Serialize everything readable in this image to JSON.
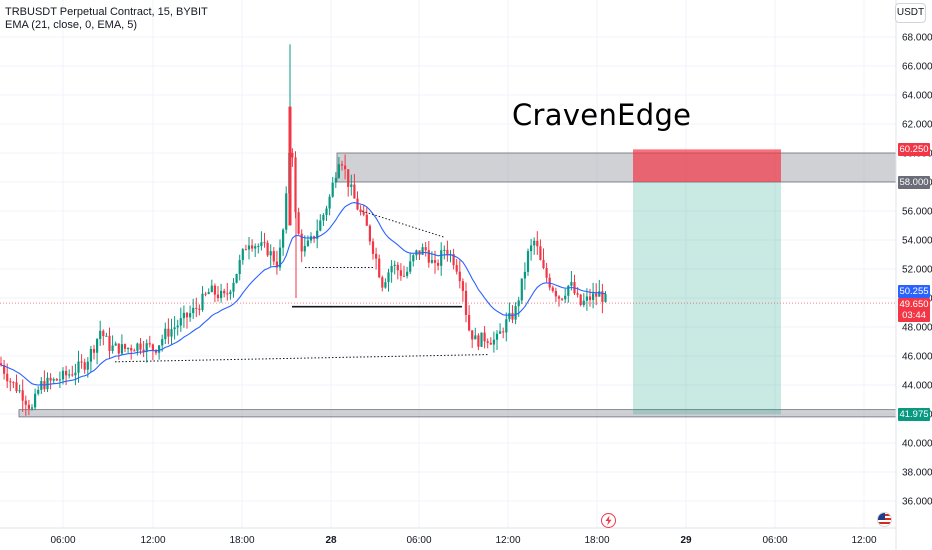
{
  "header": {
    "symbol_line": "TRBUSDT Perpetual Contract, 15, BYBIT",
    "indicator_line": "EMA (21, close, 0, EMA, 5)"
  },
  "unit_button": "USDT",
  "watermark": "CravenEdge",
  "y_axis": {
    "ticks": [
      "36.000",
      "38.000",
      "40.000",
      "42.000",
      "44.000",
      "46.000",
      "48.000",
      "50.000",
      "52.000",
      "54.000",
      "56.000",
      "58.000",
      "60.000",
      "62.000",
      "64.000",
      "66.000",
      "68.000"
    ],
    "min": 35,
    "max": 69
  },
  "x_axis": {
    "ticks": [
      "06:00",
      "12:00",
      "18:00",
      "28",
      "06:00",
      "12:00",
      "18:00",
      "29",
      "06:00",
      "12:00"
    ]
  },
  "price_tags": {
    "stop": "60.250",
    "entry": "58.000",
    "ema": "50.255",
    "last": "49.650",
    "countdown": "03:44",
    "target": "41.975"
  },
  "colors": {
    "up": "#089981",
    "down": "#f23645",
    "ema": "#2962ff",
    "stop_zone": "#f23645",
    "target_zone": "#089981",
    "gray_zone": "#9598a1"
  },
  "icons": {
    "lightning": "lightning-icon",
    "flag": "us-flag-icon"
  },
  "chart_data": {
    "type": "candlestick",
    "ylim": [
      35,
      69
    ],
    "levels": {
      "stop": 60.25,
      "entry": 58.0,
      "target": 41.975,
      "last": 49.65,
      "ema": 50.255
    },
    "zones": [
      {
        "name": "resistance",
        "from": 58.0,
        "to": 60.0
      },
      {
        "name": "support",
        "from": 41.8,
        "to": 42.3
      }
    ],
    "ema_period": 21
  }
}
